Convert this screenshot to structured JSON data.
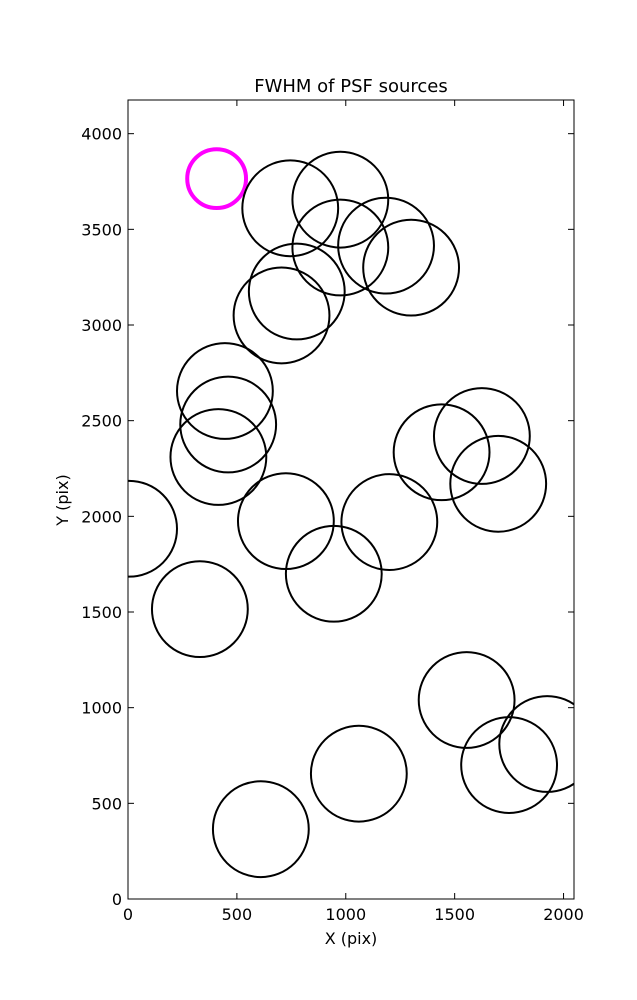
{
  "chart_data": {
    "type": "scatter",
    "marker": "circle",
    "title": "FWHM of PSF sources",
    "xlabel": "X (pix)",
    "ylabel": "Y (pix)",
    "xlim": [
      0,
      2048
    ],
    "ylim": [
      0,
      4176
    ],
    "xticks": [
      0,
      500,
      1000,
      1500,
      2000
    ],
    "yticks": [
      0,
      500,
      1000,
      1500,
      2000,
      2500,
      3000,
      3500,
      4000
    ],
    "xtick_labels": [
      "0",
      "500",
      "1000",
      "1500",
      "2000"
    ],
    "ytick_labels": [
      "0",
      "500",
      "1000",
      "1500",
      "2000",
      "2500",
      "3000",
      "3500",
      "4000"
    ],
    "grid": false,
    "default_color": "#000000",
    "highlight_color": "#ff00ff",
    "points": [
      {
        "x": 407,
        "y": 3765,
        "r": 135,
        "highlight": true
      },
      {
        "x": 745,
        "y": 3610,
        "r": 220
      },
      {
        "x": 975,
        "y": 3655,
        "r": 220
      },
      {
        "x": 975,
        "y": 3405,
        "r": 220
      },
      {
        "x": 1185,
        "y": 3415,
        "r": 220
      },
      {
        "x": 1300,
        "y": 3300,
        "r": 220
      },
      {
        "x": 775,
        "y": 3175,
        "r": 220
      },
      {
        "x": 705,
        "y": 3050,
        "r": 220
      },
      {
        "x": 445,
        "y": 2655,
        "r": 220
      },
      {
        "x": 460,
        "y": 2480,
        "r": 220
      },
      {
        "x": 415,
        "y": 2310,
        "r": 220
      },
      {
        "x": 5,
        "y": 1935,
        "r": 220
      },
      {
        "x": 725,
        "y": 1975,
        "r": 220
      },
      {
        "x": 945,
        "y": 1700,
        "r": 220
      },
      {
        "x": 1200,
        "y": 1970,
        "r": 220
      },
      {
        "x": 1440,
        "y": 2335,
        "r": 220
      },
      {
        "x": 1625,
        "y": 2420,
        "r": 220
      },
      {
        "x": 1700,
        "y": 2170,
        "r": 220
      },
      {
        "x": 330,
        "y": 1515,
        "r": 220
      },
      {
        "x": 1555,
        "y": 1040,
        "r": 220
      },
      {
        "x": 1925,
        "y": 810,
        "r": 220
      },
      {
        "x": 1750,
        "y": 700,
        "r": 220
      },
      {
        "x": 1060,
        "y": 655,
        "r": 220
      },
      {
        "x": 610,
        "y": 365,
        "r": 220
      }
    ]
  }
}
